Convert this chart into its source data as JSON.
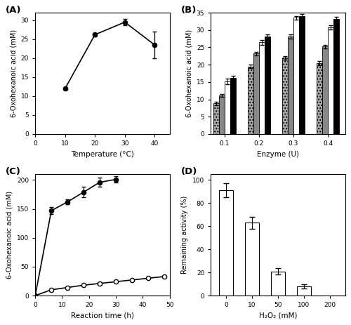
{
  "A": {
    "x": [
      10,
      20,
      30,
      40
    ],
    "y": [
      12.0,
      26.2,
      29.5,
      23.5
    ],
    "yerr": [
      0.3,
      0.5,
      0.8,
      3.5
    ],
    "xlabel": "Temperature (°C)",
    "ylabel": "6-Oxohexanoic acid (mM)",
    "xlim": [
      0,
      45
    ],
    "ylim": [
      0,
      32
    ],
    "xticks": [
      0,
      10,
      20,
      30,
      40
    ],
    "yticks": [
      0,
      5,
      10,
      15,
      20,
      25,
      30
    ]
  },
  "B": {
    "enzyme": [
      0.1,
      0.2,
      0.3,
      0.4
    ],
    "hatched_6h": [
      8.8,
      19.5,
      22.0,
      20.5
    ],
    "gray_18h": [
      11.2,
      23.2,
      28.2,
      25.2
    ],
    "open_36h": [
      15.2,
      26.5,
      33.5,
      30.8
    ],
    "black_48h": [
      16.2,
      28.2,
      34.0,
      33.2
    ],
    "err_hatched": [
      0.5,
      0.5,
      0.5,
      0.6
    ],
    "err_gray": [
      0.4,
      0.5,
      0.6,
      0.5
    ],
    "err_open": [
      0.8,
      0.7,
      0.5,
      0.6
    ],
    "err_black": [
      0.5,
      0.6,
      0.6,
      0.5
    ],
    "xlabel": "Enzyme (U)",
    "ylabel": "6-Oxohexanoic acid (mM)",
    "ylim": [
      0,
      35
    ],
    "yticks": [
      0,
      5,
      10,
      15,
      20,
      25,
      30,
      35
    ]
  },
  "C": {
    "x_open": [
      0,
      6,
      12,
      18,
      24,
      30,
      36,
      42,
      48
    ],
    "y_open": [
      0,
      10,
      14,
      18,
      21,
      24,
      27,
      30,
      33
    ],
    "err_open": [
      0,
      0.8,
      1.0,
      1.0,
      1.2,
      1.0,
      0.8,
      0.8,
      0.8
    ],
    "x_closed": [
      0,
      6,
      12,
      18,
      24,
      30
    ],
    "y_closed": [
      0,
      147,
      162,
      179,
      196,
      201
    ],
    "err_closed": [
      0,
      6.0,
      4.0,
      9.0,
      8.0,
      5.0
    ],
    "xlabel": "Reaction time (h)",
    "ylabel": "6-Oxohexanoic acid (mM)",
    "xlim": [
      0,
      50
    ],
    "ylim": [
      0,
      210
    ],
    "xticks": [
      0,
      10,
      20,
      30,
      40,
      50
    ],
    "yticks": [
      0,
      50,
      100,
      150,
      200
    ]
  },
  "D": {
    "x_labels": [
      "0",
      "10",
      "50",
      "100",
      "200"
    ],
    "y": [
      91,
      63,
      21,
      8,
      0
    ],
    "yerr": [
      6,
      5,
      3,
      2,
      0
    ],
    "xlabel": "H₂O₂ (mM)",
    "ylabel": "Remaining activity (%)",
    "ylim": [
      0,
      105
    ],
    "yticks": [
      0,
      20,
      40,
      60,
      80,
      100
    ]
  }
}
